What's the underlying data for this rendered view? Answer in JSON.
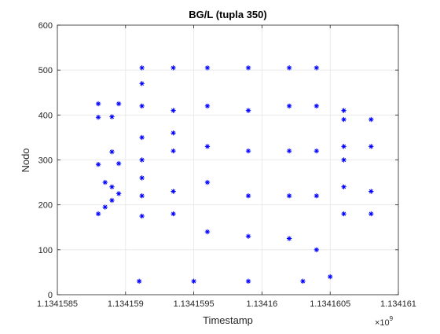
{
  "chart_data": {
    "type": "scatter",
    "title": "BG/L (tupla 350)",
    "xlabel": "Timestamp",
    "ylabel": "Nodo",
    "x_exponent_label": "×10",
    "x_exponent_power": "9",
    "xlim": [
      1.1341585,
      1.134161
    ],
    "ylim": [
      0,
      600
    ],
    "x_ticks": [
      1.1341585,
      1.134159,
      1.1341595,
      1.13416,
      1.1341605,
      1.134161
    ],
    "x_tick_labels": [
      "1.1341585",
      "1.134159",
      "1.1341595",
      "1.13416",
      "1.1341605",
      "1.134161"
    ],
    "y_ticks": [
      0,
      100,
      200,
      300,
      400,
      500,
      600
    ],
    "y_tick_labels": [
      "0",
      "100",
      "200",
      "300",
      "400",
      "500",
      "600"
    ],
    "grid": true,
    "marker": "asterisk",
    "color": "#0000ff",
    "series": [
      {
        "points": [
          [
            1.1341588,
            180
          ],
          [
            1.13415885,
            195
          ],
          [
            1.1341589,
            210
          ],
          [
            1.13415895,
            225
          ],
          [
            1.1341589,
            240
          ],
          [
            1.13415885,
            250
          ],
          [
            1.1341588,
            290
          ],
          [
            1.13415895,
            292
          ],
          [
            1.1341589,
            318
          ],
          [
            1.1341588,
            395
          ],
          [
            1.1341589,
            396
          ],
          [
            1.1341588,
            425
          ],
          [
            1.13415895,
            425
          ],
          [
            1.13415912,
            175
          ],
          [
            1.13415912,
            220
          ],
          [
            1.13415912,
            260
          ],
          [
            1.13415912,
            300
          ],
          [
            1.13415912,
            350
          ],
          [
            1.13415912,
            420
          ],
          [
            1.13415912,
            470
          ],
          [
            1.13415912,
            505
          ],
          [
            1.13415935,
            180
          ],
          [
            1.13415935,
            230
          ],
          [
            1.13415935,
            320
          ],
          [
            1.13415935,
            360
          ],
          [
            1.13415935,
            410
          ],
          [
            1.13415935,
            505
          ],
          [
            1.1341596,
            140
          ],
          [
            1.1341596,
            250
          ],
          [
            1.1341596,
            330
          ],
          [
            1.1341596,
            420
          ],
          [
            1.1341596,
            505
          ],
          [
            1.1341599,
            130
          ],
          [
            1.1341599,
            220
          ],
          [
            1.1341599,
            320
          ],
          [
            1.1341599,
            410
          ],
          [
            1.1341599,
            505
          ],
          [
            1.1341602,
            125
          ],
          [
            1.1341602,
            220
          ],
          [
            1.1341602,
            320
          ],
          [
            1.1341602,
            420
          ],
          [
            1.1341602,
            505
          ],
          [
            1.1341604,
            100
          ],
          [
            1.1341604,
            220
          ],
          [
            1.1341604,
            320
          ],
          [
            1.1341604,
            420
          ],
          [
            1.1341604,
            505
          ],
          [
            1.1341606,
            180
          ],
          [
            1.1341606,
            240
          ],
          [
            1.1341606,
            300
          ],
          [
            1.1341606,
            330
          ],
          [
            1.1341606,
            390
          ],
          [
            1.1341606,
            410
          ],
          [
            1.1341608,
            180
          ],
          [
            1.1341608,
            230
          ],
          [
            1.1341608,
            330
          ],
          [
            1.1341608,
            390
          ],
          [
            1.1341591,
            30
          ],
          [
            1.1341595,
            30
          ],
          [
            1.1341599,
            30
          ],
          [
            1.1341603,
            30
          ],
          [
            1.1341605,
            40
          ]
        ]
      }
    ]
  }
}
